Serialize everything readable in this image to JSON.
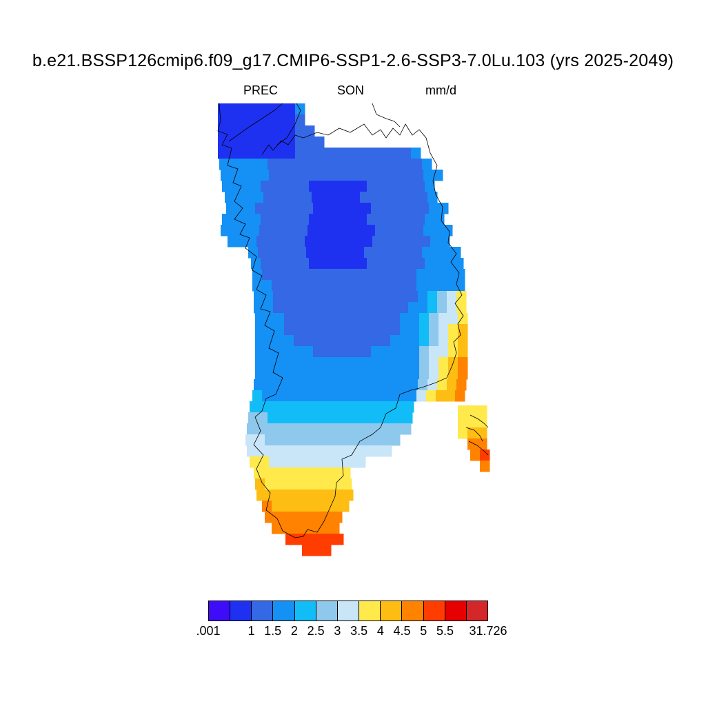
{
  "title": "b.e21.BSSP126cmip6.f09_g17.CMIP6-SSP1-2.6-SSP3-7.0Lu.103 (yrs 2025-2049)",
  "variable": "PREC",
  "season": "SON",
  "units": "mm/d",
  "colorbar": {
    "colors": [
      "#3f0cfa",
      "#1f31f0",
      "#3468e5",
      "#1590f5",
      "#12bdf7",
      "#8ec8ed",
      "#c8e6f8",
      "#ffe94b",
      "#fdbd12",
      "#ff8200",
      "#ff3d00",
      "#e60000",
      "#d3272a"
    ],
    "tick_labels": [
      ".001",
      "1",
      "1.5",
      "2",
      "2.5",
      "3",
      "3.5",
      "4",
      "4.5",
      "5",
      "5.5",
      "31.726"
    ]
  },
  "map": {
    "region": "Greenland",
    "field": "seasonal mean precipitation"
  }
}
